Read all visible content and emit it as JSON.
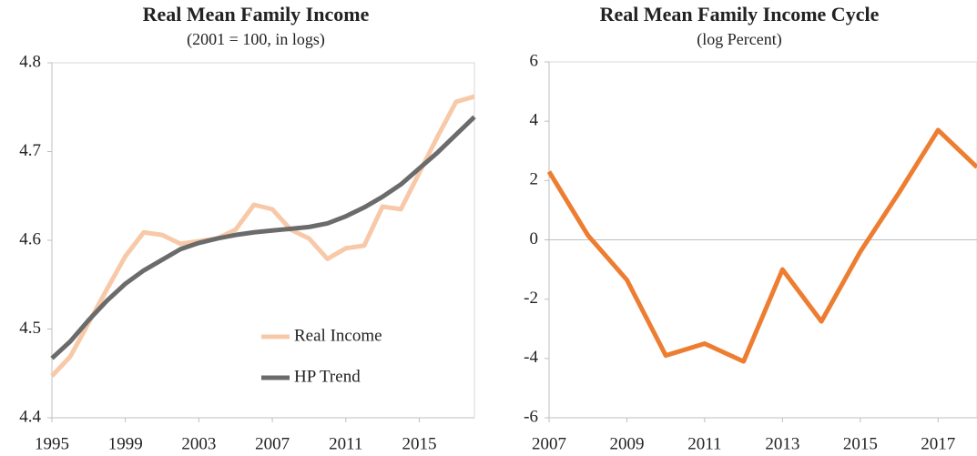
{
  "chart_data": [
    {
      "type": "line",
      "title": "Real Mean Family Income",
      "subtitle": "(2001 = 100, in logs)",
      "x": [
        1995,
        1996,
        1997,
        1998,
        1999,
        2000,
        2001,
        2002,
        2003,
        2004,
        2005,
        2006,
        2007,
        2008,
        2009,
        2010,
        2011,
        2012,
        2013,
        2014,
        2015,
        2016,
        2017,
        2018
      ],
      "series": [
        {
          "name": "Real Income",
          "color": "#f8c9a8",
          "values": [
            4.447,
            4.469,
            4.507,
            4.545,
            4.582,
            4.609,
            4.606,
            4.596,
            4.599,
            4.602,
            4.612,
            4.64,
            4.635,
            4.612,
            4.602,
            4.579,
            4.591,
            4.594,
            4.638,
            4.635,
            4.676,
            4.717,
            4.756,
            4.762
          ]
        },
        {
          "name": "HP Trend",
          "color": "#6b6b6b",
          "values": [
            4.467,
            4.486,
            4.51,
            4.532,
            4.551,
            4.566,
            4.578,
            4.59,
            4.597,
            4.602,
            4.606,
            4.609,
            4.611,
            4.613,
            4.615,
            4.619,
            4.627,
            4.637,
            4.649,
            4.663,
            4.681,
            4.699,
            4.719,
            4.739
          ]
        }
      ],
      "xlim": [
        1995,
        2018
      ],
      "xticks": [
        1995,
        1999,
        2003,
        2007,
        2011,
        2015
      ],
      "ylim": [
        4.4,
        4.8
      ],
      "yticks": [
        4.4,
        4.5,
        4.6,
        4.7,
        4.8
      ],
      "legend": "lower right"
    },
    {
      "type": "line",
      "title": "Real Mean Family Income Cycle",
      "subtitle": "(log Percent)",
      "x": [
        2007,
        2008,
        2009,
        2010,
        2011,
        2012,
        2013,
        2014,
        2015,
        2016,
        2017,
        2018
      ],
      "series": [
        {
          "color": "#ed7d31",
          "values": [
            2.3,
            0.15,
            -1.35,
            -3.9,
            -3.5,
            -4.1,
            -1.0,
            -2.75,
            -0.4,
            1.6,
            3.7,
            2.45
          ]
        }
      ],
      "xlim": [
        2007,
        2018
      ],
      "xticks": [
        2007,
        2009,
        2011,
        2013,
        2015,
        2017
      ],
      "ylim": [
        -6,
        6
      ],
      "yticks": [
        6,
        4,
        2,
        0,
        -2,
        -4,
        -6
      ],
      "zero_line": true
    }
  ]
}
